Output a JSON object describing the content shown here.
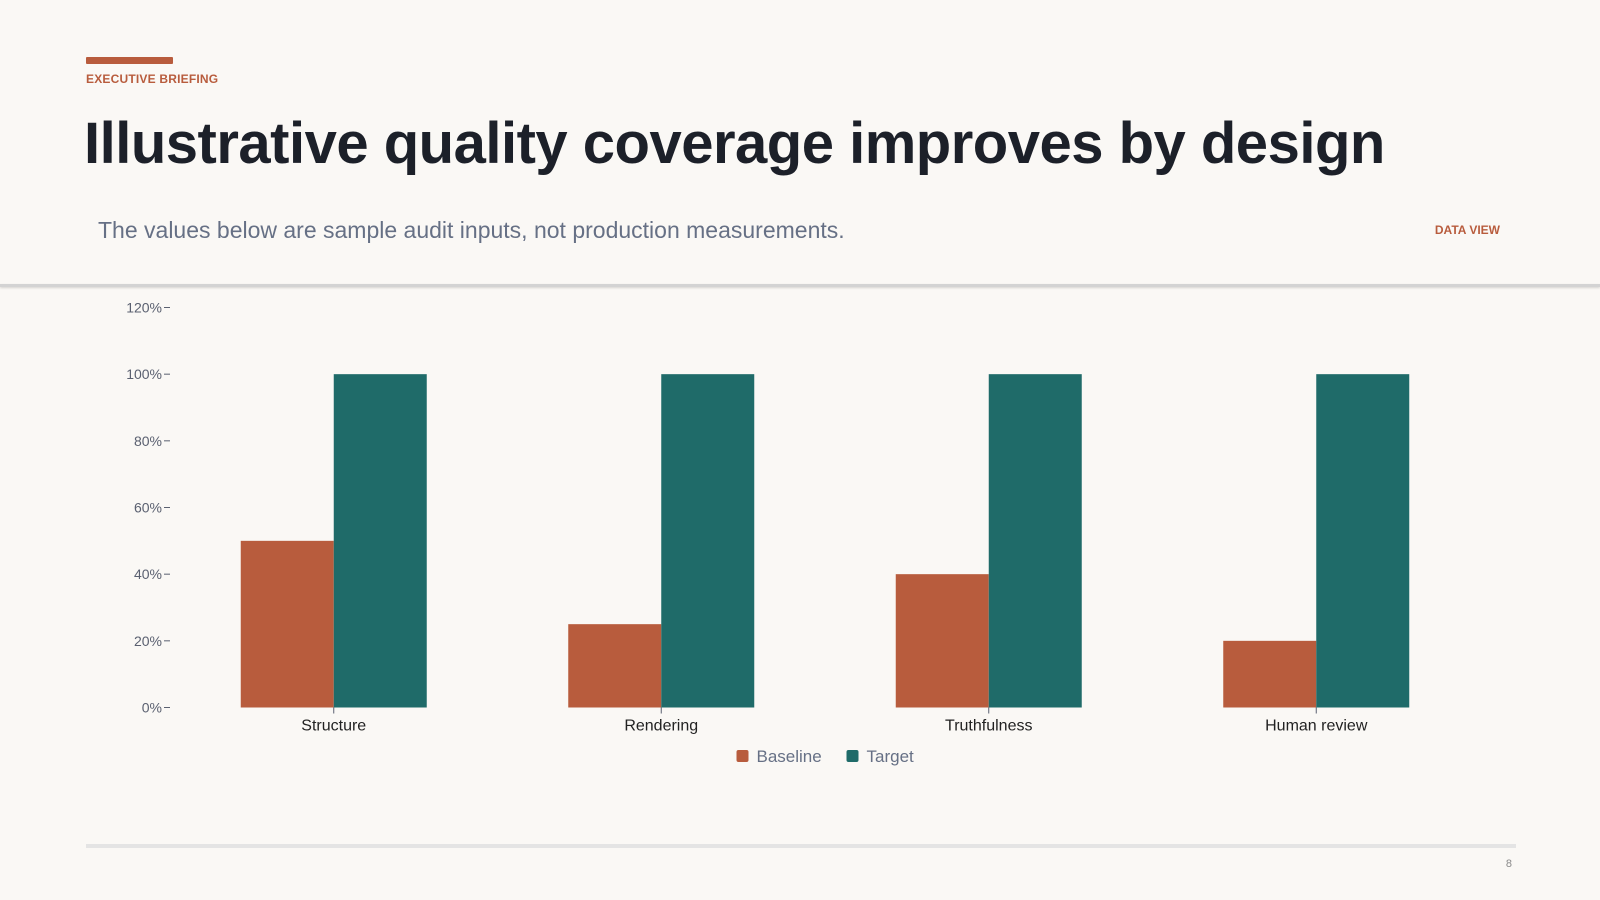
{
  "slide": {
    "eyebrow": "EXECUTIVE BRIEFING",
    "title": "Illustrative quality coverage improves by design",
    "subtitle": "The values below are sample audit inputs, not production measurements.",
    "view_tag": "DATA VIEW",
    "page_number": "8"
  },
  "colors": {
    "accent": "#b85c3d",
    "baseline": "#b85c3d",
    "target": "#1f6b69"
  },
  "chart_data": {
    "type": "bar",
    "categories": [
      "Structure",
      "Rendering",
      "Truthfulness",
      "Human review"
    ],
    "series": [
      {
        "name": "Baseline",
        "values": [
          50,
          25,
          40,
          20
        ],
        "color": "#b85c3d"
      },
      {
        "name": "Target",
        "values": [
          100,
          100,
          100,
          100
        ],
        "color": "#1f6b69"
      }
    ],
    "title": "",
    "xlabel": "",
    "ylabel": "",
    "ylim": [
      0,
      120
    ],
    "yticks": [
      0,
      20,
      40,
      60,
      80,
      100,
      120
    ],
    "ytick_suffix": "%",
    "grid": false,
    "legend": "bottom-center"
  }
}
